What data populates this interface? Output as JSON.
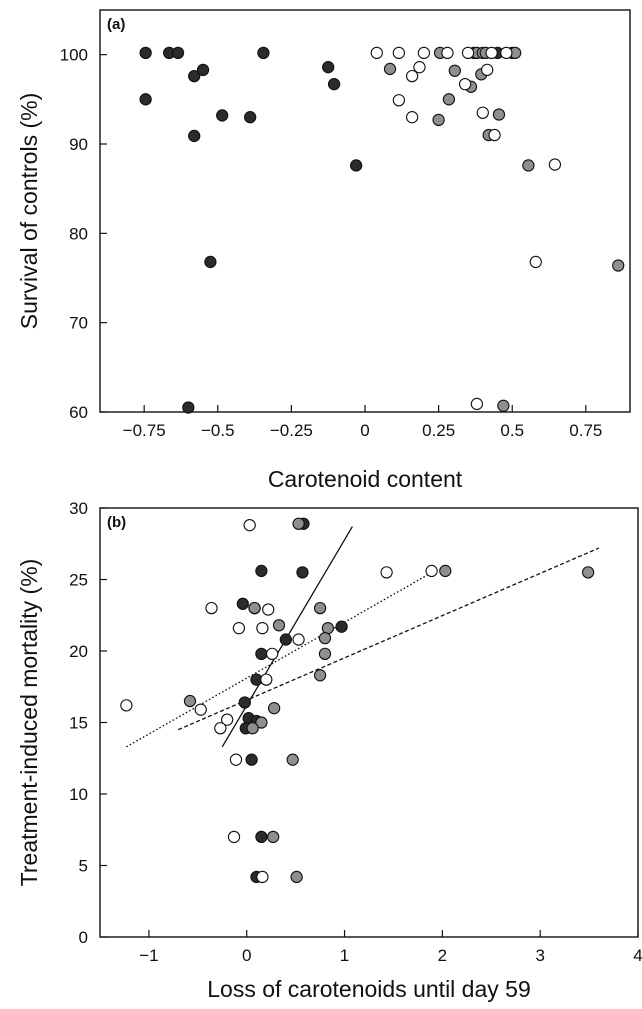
{
  "chart_data": [
    {
      "type": "scatter",
      "panel_label": "(a)",
      "xlabel": "Carotenoid content",
      "ylabel": "Survival of controls (%)",
      "xlim": [
        -0.9,
        0.9
      ],
      "ylim": [
        60,
        105
      ],
      "xticks": [
        -0.75,
        -0.5,
        -0.25,
        0,
        0.25,
        0.5,
        0.75
      ],
      "xtick_labels": [
        "−0.75",
        "−0.5",
        "−0.25",
        "0",
        "0.25",
        "0.5",
        "0.75"
      ],
      "yticks": [
        60,
        70,
        80,
        90,
        100
      ],
      "ytick_labels": [
        "60",
        "70",
        "80",
        "90",
        "100"
      ],
      "series": [
        {
          "color": "#2b2b2b",
          "points": [
            [
              -0.745,
              100.2
            ],
            [
              -0.745,
              95.0
            ],
            [
              -0.665,
              100.2
            ],
            [
              -0.635,
              100.2
            ],
            [
              -0.58,
              97.6
            ],
            [
              -0.55,
              98.3
            ],
            [
              -0.58,
              90.9
            ],
            [
              -0.485,
              93.2
            ],
            [
              -0.39,
              93.0
            ],
            [
              -0.345,
              100.2
            ],
            [
              -0.125,
              98.6
            ],
            [
              -0.105,
              96.7
            ],
            [
              -0.03,
              87.6
            ],
            [
              -0.525,
              76.8
            ],
            [
              -0.6,
              60.5
            ],
            [
              0.37,
              100.2
            ],
            [
              0.45,
              100.2
            ],
            [
              0.5,
              100.2
            ]
          ]
        },
        {
          "color": "#8f8f8f",
          "points": [
            [
              0.085,
              98.4
            ],
            [
              0.255,
              100.2
            ],
            [
              0.305,
              98.2
            ],
            [
              0.285,
              95.0
            ],
            [
              0.36,
              96.4
            ],
            [
              0.38,
              100.2
            ],
            [
              0.4,
              100.2
            ],
            [
              0.41,
              100.2
            ],
            [
              0.42,
              91.0
            ],
            [
              0.455,
              93.3
            ],
            [
              0.51,
              100.2
            ],
            [
              0.395,
              97.8
            ],
            [
              0.25,
              92.7
            ],
            [
              0.555,
              87.6
            ],
            [
              0.86,
              76.4
            ],
            [
              0.47,
              60.7
            ]
          ]
        },
        {
          "color": "#ffffff",
          "points": [
            [
              0.04,
              100.2
            ],
            [
              0.115,
              100.2
            ],
            [
              0.2,
              100.2
            ],
            [
              0.28,
              100.2
            ],
            [
              0.35,
              100.2
            ],
            [
              0.43,
              100.2
            ],
            [
              0.48,
              100.2
            ],
            [
              0.185,
              98.6
            ],
            [
              0.16,
              97.6
            ],
            [
              0.415,
              98.3
            ],
            [
              0.34,
              96.7
            ],
            [
              0.115,
              94.9
            ],
            [
              0.16,
              93.0
            ],
            [
              0.4,
              93.5
            ],
            [
              0.44,
              91.0
            ],
            [
              0.645,
              87.7
            ],
            [
              0.58,
              76.8
            ],
            [
              0.38,
              60.9
            ]
          ]
        }
      ],
      "lines": []
    },
    {
      "type": "scatter",
      "panel_label": "(b)",
      "xlabel": "Loss of carotenoids until day 59",
      "ylabel": "Treatment-induced mortality (%)",
      "xlim": [
        -1.5,
        4
      ],
      "ylim": [
        0,
        30
      ],
      "xticks": [
        -1,
        0,
        1,
        2,
        3,
        4
      ],
      "xtick_labels": [
        "−1",
        "0",
        "1",
        "2",
        "3",
        "4"
      ],
      "yticks": [
        0,
        5,
        10,
        15,
        20,
        25,
        30
      ],
      "ytick_labels": [
        "0",
        "5",
        "10",
        "15",
        "20",
        "25",
        "30"
      ],
      "series": [
        {
          "color": "#2b2b2b",
          "points": [
            [
              0.58,
              28.9
            ],
            [
              0.15,
              25.6
            ],
            [
              0.57,
              25.5
            ],
            [
              -0.04,
              23.3
            ],
            [
              0.08,
              23.0
            ],
            [
              0.4,
              20.8
            ],
            [
              0.97,
              21.7
            ],
            [
              0.15,
              19.8
            ],
            [
              0.1,
              18.0
            ],
            [
              -0.02,
              16.4
            ],
            [
              0.02,
              15.3
            ],
            [
              0.1,
              15.1
            ],
            [
              -0.01,
              14.6
            ],
            [
              0.05,
              12.4
            ],
            [
              0.15,
              7.0
            ],
            [
              0.1,
              4.2
            ]
          ]
        },
        {
          "color": "#8f8f8f",
          "points": [
            [
              0.53,
              28.9
            ],
            [
              2.03,
              25.6
            ],
            [
              3.49,
              25.5
            ],
            [
              0.75,
              23.0
            ],
            [
              0.08,
              23.0
            ],
            [
              0.33,
              21.8
            ],
            [
              0.83,
              21.6
            ],
            [
              0.8,
              20.9
            ],
            [
              0.8,
              19.8
            ],
            [
              0.75,
              18.3
            ],
            [
              -0.58,
              16.5
            ],
            [
              0.28,
              16.0
            ],
            [
              0.15,
              15.0
            ],
            [
              0.06,
              14.6
            ],
            [
              0.47,
              12.4
            ],
            [
              0.27,
              7.0
            ],
            [
              0.51,
              4.2
            ]
          ]
        },
        {
          "color": "#ffffff",
          "points": [
            [
              0.03,
              28.8
            ],
            [
              1.43,
              25.5
            ],
            [
              1.89,
              25.6
            ],
            [
              -0.36,
              23.0
            ],
            [
              0.22,
              22.9
            ],
            [
              -0.08,
              21.6
            ],
            [
              0.16,
              21.6
            ],
            [
              0.53,
              20.8
            ],
            [
              0.26,
              19.8
            ],
            [
              0.2,
              18.0
            ],
            [
              -1.23,
              16.2
            ],
            [
              -0.47,
              15.9
            ],
            [
              -0.2,
              15.2
            ],
            [
              -0.27,
              14.6
            ],
            [
              -0.11,
              12.4
            ],
            [
              -0.13,
              7.0
            ],
            [
              0.16,
              4.2
            ]
          ]
        }
      ],
      "lines": [
        {
          "style": "solid",
          "from": [
            -0.25,
            13.3
          ],
          "to": [
            1.08,
            28.7
          ]
        },
        {
          "style": "dashed",
          "from": [
            -0.7,
            14.5
          ],
          "to": [
            3.6,
            27.2
          ]
        },
        {
          "style": "dotted",
          "from": [
            -1.23,
            13.3
          ],
          "to": [
            1.92,
            25.6
          ]
        }
      ]
    }
  ]
}
